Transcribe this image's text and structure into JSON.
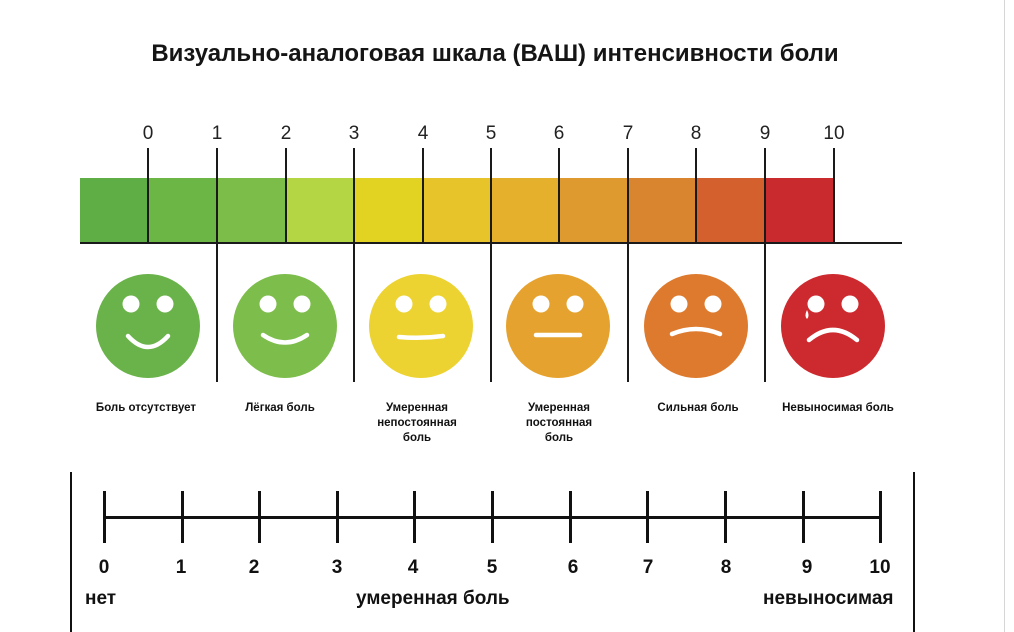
{
  "title": "Визуально-аналоговая шкала (ВАШ) интенсивности боли",
  "scale_numbers": [
    "0",
    "1",
    "2",
    "3",
    "4",
    "5",
    "6",
    "7",
    "8",
    "9",
    "10"
  ],
  "bar_colors": [
    "#5eae45",
    "#6cb646",
    "#7cbd49",
    "#b4d544",
    "#e2d323",
    "#e8c42b",
    "#e5b12c",
    "#df9a2f",
    "#d9842e",
    "#d4602e",
    "#c92a2d"
  ],
  "faces": [
    {
      "name": "no-pain",
      "color": "#6ab24a",
      "mood": "big-smile"
    },
    {
      "name": "mild-pain",
      "color": "#7dbd4b",
      "mood": "smile"
    },
    {
      "name": "moderate-intermittent",
      "color": "#ecd331",
      "mood": "neutral"
    },
    {
      "name": "moderate-constant",
      "color": "#e6a22e",
      "mood": "neutral-low"
    },
    {
      "name": "severe-pain",
      "color": "#de7a2e",
      "mood": "frown"
    },
    {
      "name": "unbearable-pain",
      "color": "#cc2a2f",
      "mood": "cry"
    }
  ],
  "categories": [
    {
      "lines": [
        "Боль отсутствует"
      ]
    },
    {
      "lines": [
        "Лёгкая боль"
      ]
    },
    {
      "lines": [
        "Умеренная",
        "непостоянная",
        "боль"
      ]
    },
    {
      "lines": [
        "Умеренная",
        "постоянная",
        "боль"
      ]
    },
    {
      "lines": [
        "Сильная боль"
      ]
    },
    {
      "lines": [
        "Невыносимая боль"
      ]
    }
  ],
  "axis_numbers": [
    "0",
    "1",
    "2",
    "3",
    "4",
    "5",
    "6",
    "7",
    "8",
    "9",
    "10"
  ],
  "axis_words": {
    "left": "нет",
    "middle": "умеренная боль",
    "right": "невыносимая"
  }
}
